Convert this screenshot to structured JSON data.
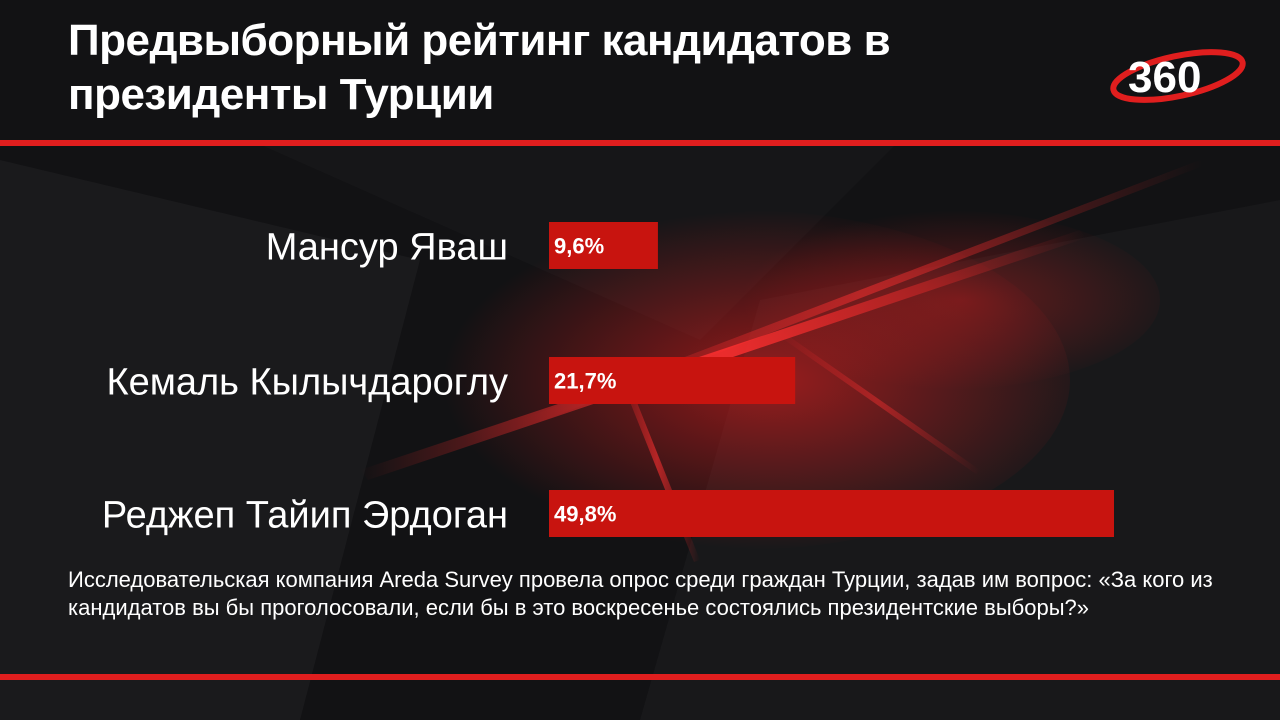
{
  "title": "Предвыборный рейтинг кандидатов в президенты Турции",
  "logo": {
    "text": "360",
    "icon": "logo-360-swoosh-icon"
  },
  "note": "Исследовательская компания Areda Survey провела опрос среди граждан Турции, задав им вопрос: «За кого из кандидатов вы бы проголосовали, если бы в это воскресенье состоялись президентские выборы?»",
  "colors": {
    "bar": "#c8140f",
    "accent": "#e01e1e",
    "background": "#121214"
  },
  "chart_data": {
    "type": "bar",
    "orientation": "horizontal",
    "categories": [
      "Мансур Яваш",
      "Кемаль Кылычдароглу",
      "Реджеп Тайип Эрдоган"
    ],
    "values": [
      9.6,
      21.7,
      49.8
    ],
    "value_labels": [
      "9,6%",
      "21,7%",
      "49,8%"
    ],
    "title": "Предвыборный рейтинг кандидатов в президенты Турции",
    "xlabel": "",
    "ylabel": "",
    "grid": false,
    "legend": "none"
  }
}
